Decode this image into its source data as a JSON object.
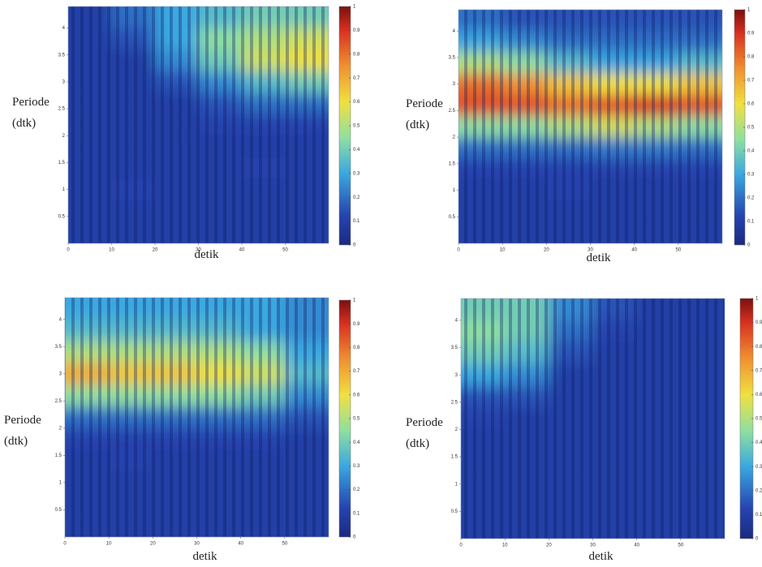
{
  "chart_data": [
    {
      "type": "heatmap",
      "colormap": "jet",
      "xlabel": "detik",
      "ylabel": [
        "Periode",
        "(dtk)"
      ],
      "xlim": [
        0,
        60
      ],
      "ylim": [
        0,
        4.4
      ],
      "xticks": [
        0,
        10,
        20,
        30,
        40,
        50
      ],
      "yticks": [
        0.5,
        1,
        1.5,
        2,
        2.5,
        3,
        3.5,
        4
      ],
      "x": [
        5,
        15,
        25,
        35,
        45,
        55
      ],
      "y": [
        0.2,
        0.6,
        1.0,
        1.4,
        1.8,
        2.2,
        2.6,
        3.0,
        3.4,
        3.8,
        4.2
      ],
      "z": [
        [
          0.1,
          0.1,
          0.1,
          0.1,
          0.1,
          0.1
        ],
        [
          0.1,
          0.1,
          0.1,
          0.1,
          0.1,
          0.1
        ],
        [
          0.1,
          0.12,
          0.1,
          0.1,
          0.1,
          0.1
        ],
        [
          0.1,
          0.1,
          0.1,
          0.1,
          0.12,
          0.1
        ],
        [
          0.1,
          0.1,
          0.1,
          0.1,
          0.1,
          0.1
        ],
        [
          0.1,
          0.1,
          0.1,
          0.12,
          0.12,
          0.12
        ],
        [
          0.1,
          0.1,
          0.1,
          0.15,
          0.2,
          0.2
        ],
        [
          0.1,
          0.1,
          0.15,
          0.25,
          0.35,
          0.4
        ],
        [
          0.1,
          0.1,
          0.25,
          0.4,
          0.55,
          0.6
        ],
        [
          0.1,
          0.15,
          0.3,
          0.45,
          0.5,
          0.55
        ],
        [
          0.1,
          0.2,
          0.3,
          0.35,
          0.4,
          0.4
        ]
      ],
      "colorbar": {
        "lim": [
          0,
          1
        ],
        "ticks": [
          0,
          0.1,
          0.2,
          0.3,
          0.4,
          0.5,
          0.6,
          0.7,
          0.8,
          0.9,
          1
        ]
      }
    },
    {
      "type": "heatmap",
      "colormap": "jet",
      "xlabel": "detik",
      "ylabel": [
        "Periode",
        "(dtk)"
      ],
      "xlim": [
        0,
        60
      ],
      "ylim": [
        0,
        4.4
      ],
      "xticks": [
        0,
        10,
        20,
        30,
        40,
        50
      ],
      "yticks": [
        0.5,
        1,
        1.5,
        2,
        2.5,
        3,
        3.5,
        4
      ],
      "x": [
        5,
        15,
        25,
        35,
        45,
        55
      ],
      "y": [
        0.2,
        0.6,
        1.0,
        1.4,
        1.8,
        2.2,
        2.6,
        3.0,
        3.4,
        3.8,
        4.2
      ],
      "z": [
        [
          0.1,
          0.1,
          0.1,
          0.1,
          0.1,
          0.1
        ],
        [
          0.1,
          0.1,
          0.1,
          0.1,
          0.1,
          0.1
        ],
        [
          0.1,
          0.1,
          0.12,
          0.1,
          0.1,
          0.1
        ],
        [
          0.12,
          0.12,
          0.12,
          0.12,
          0.12,
          0.12
        ],
        [
          0.2,
          0.2,
          0.2,
          0.22,
          0.22,
          0.2
        ],
        [
          0.45,
          0.45,
          0.5,
          0.55,
          0.5,
          0.45
        ],
        [
          0.85,
          0.85,
          0.8,
          0.85,
          0.9,
          0.85
        ],
        [
          0.8,
          0.75,
          0.65,
          0.6,
          0.6,
          0.65
        ],
        [
          0.5,
          0.45,
          0.35,
          0.3,
          0.3,
          0.35
        ],
        [
          0.3,
          0.25,
          0.2,
          0.2,
          0.2,
          0.2
        ],
        [
          0.2,
          0.15,
          0.15,
          0.15,
          0.15,
          0.15
        ]
      ],
      "colorbar": {
        "lim": [
          0,
          1
        ],
        "ticks": [
          0,
          0.1,
          0.2,
          0.3,
          0.4,
          0.5,
          0.6,
          0.7,
          0.8,
          0.9,
          1
        ]
      }
    },
    {
      "type": "heatmap",
      "colormap": "jet",
      "xlabel": "detik",
      "ylabel": [
        "Periode",
        "(dtk)"
      ],
      "xlim": [
        0,
        60
      ],
      "ylim": [
        0,
        4.4
      ],
      "xticks": [
        0,
        10,
        20,
        30,
        40,
        50
      ],
      "yticks": [
        0.5,
        1,
        1.5,
        2,
        2.5,
        3,
        3.5,
        4
      ],
      "x": [
        5,
        15,
        25,
        35,
        45,
        55
      ],
      "y": [
        0.2,
        0.6,
        1.0,
        1.4,
        1.8,
        2.2,
        2.6,
        3.0,
        3.4,
        3.8,
        4.2
      ],
      "z": [
        [
          0.1,
          0.1,
          0.1,
          0.1,
          0.1,
          0.1
        ],
        [
          0.1,
          0.1,
          0.1,
          0.1,
          0.1,
          0.1
        ],
        [
          0.1,
          0.1,
          0.1,
          0.1,
          0.1,
          0.1
        ],
        [
          0.1,
          0.12,
          0.1,
          0.1,
          0.1,
          0.1
        ],
        [
          0.12,
          0.12,
          0.12,
          0.12,
          0.12,
          0.1
        ],
        [
          0.2,
          0.2,
          0.2,
          0.2,
          0.2,
          0.15
        ],
        [
          0.45,
          0.45,
          0.45,
          0.45,
          0.4,
          0.25
        ],
        [
          0.7,
          0.65,
          0.65,
          0.6,
          0.55,
          0.35
        ],
        [
          0.5,
          0.5,
          0.5,
          0.5,
          0.45,
          0.3
        ],
        [
          0.35,
          0.35,
          0.35,
          0.35,
          0.3,
          0.25
        ],
        [
          0.3,
          0.3,
          0.3,
          0.3,
          0.3,
          0.25
        ]
      ],
      "colorbar": {
        "lim": [
          0,
          1
        ],
        "ticks": [
          0,
          0.1,
          0.2,
          0.3,
          0.4,
          0.5,
          0.6,
          0.7,
          0.8,
          0.9,
          1
        ]
      }
    },
    {
      "type": "heatmap",
      "colormap": "jet",
      "xlabel": "detik",
      "ylabel": [
        "Periode",
        "(dtk)"
      ],
      "xlim": [
        0,
        60
      ],
      "ylim": [
        0,
        4.4
      ],
      "xticks": [
        0,
        10,
        20,
        30,
        40,
        50
      ],
      "yticks": [
        0.5,
        1,
        1.5,
        2,
        2.5,
        3,
        3.5,
        4
      ],
      "x": [
        5,
        15,
        25,
        35,
        45,
        55
      ],
      "y": [
        0.2,
        0.6,
        1.0,
        1.4,
        1.8,
        2.2,
        2.6,
        3.0,
        3.4,
        3.8,
        4.2
      ],
      "z": [
        [
          0.1,
          0.1,
          0.1,
          0.1,
          0.1,
          0.1
        ],
        [
          0.1,
          0.1,
          0.1,
          0.1,
          0.1,
          0.1
        ],
        [
          0.1,
          0.1,
          0.1,
          0.1,
          0.1,
          0.1
        ],
        [
          0.1,
          0.1,
          0.1,
          0.1,
          0.1,
          0.1
        ],
        [
          0.1,
          0.1,
          0.1,
          0.1,
          0.1,
          0.1
        ],
        [
          0.12,
          0.1,
          0.1,
          0.1,
          0.1,
          0.1
        ],
        [
          0.15,
          0.15,
          0.1,
          0.1,
          0.1,
          0.1
        ],
        [
          0.3,
          0.25,
          0.1,
          0.1,
          0.1,
          0.1
        ],
        [
          0.4,
          0.35,
          0.15,
          0.1,
          0.1,
          0.1
        ],
        [
          0.45,
          0.4,
          0.2,
          0.12,
          0.1,
          0.1
        ],
        [
          0.4,
          0.4,
          0.25,
          0.15,
          0.1,
          0.1
        ]
      ],
      "colorbar": {
        "lim": [
          0,
          1
        ],
        "ticks": [
          0,
          0.1,
          0.2,
          0.3,
          0.4,
          0.5,
          0.6,
          0.7,
          0.8,
          0.9,
          1
        ]
      }
    }
  ]
}
